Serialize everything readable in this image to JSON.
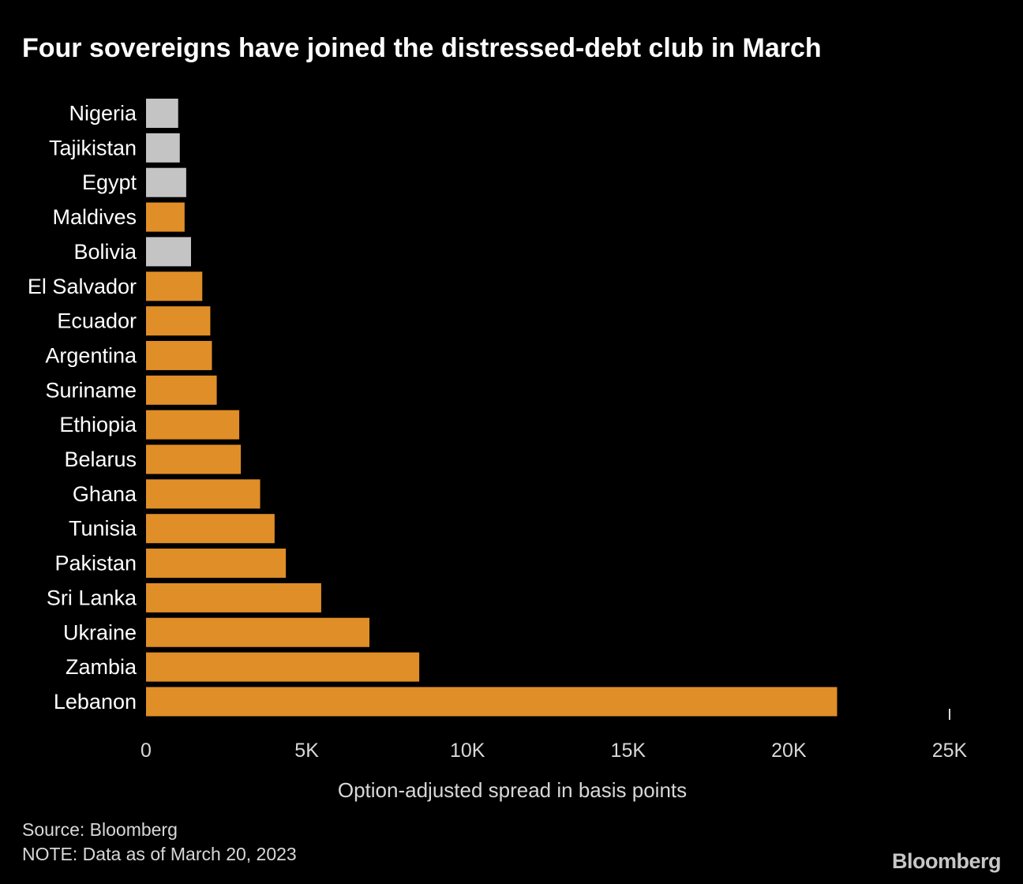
{
  "title": "Four sovereigns have joined the distressed-debt club in March",
  "source": "Source: Bloomberg",
  "note": "NOTE: Data as of March 20, 2023",
  "logo": "Bloomberg",
  "colors": {
    "background": "#000000",
    "highlight": "#e08e27",
    "other": "#c4c4c4",
    "text": "#ffffff",
    "axis_text": "#d8d8d8"
  },
  "chart_data": {
    "type": "bar",
    "orientation": "horizontal",
    "xlabel": "Option-adjusted spread in basis points",
    "ylabel": "",
    "xlim": [
      0,
      25000
    ],
    "xticks": [
      0,
      5000,
      10000,
      15000,
      20000,
      25000
    ],
    "xtick_labels": [
      "0",
      "5K",
      "10K",
      "15K",
      "20K",
      "25K"
    ],
    "grid": false,
    "categories": [
      "Nigeria",
      "Tajikistan",
      "Egypt",
      "Maldives",
      "Bolivia",
      "El Salvador",
      "Ecuador",
      "Argentina",
      "Suriname",
      "Ethiopia",
      "Belarus",
      "Ghana",
      "Tunisia",
      "Pakistan",
      "Sri Lanka",
      "Ukraine",
      "Zambia",
      "Lebanon"
    ],
    "values": [
      1000,
      1050,
      1250,
      1200,
      1400,
      1750,
      2000,
      2050,
      2200,
      2900,
      2950,
      3550,
      4000,
      4350,
      5450,
      6950,
      8500,
      21500
    ],
    "highlight": [
      false,
      false,
      false,
      true,
      false,
      true,
      true,
      true,
      true,
      true,
      true,
      true,
      true,
      true,
      true,
      true,
      true,
      true
    ]
  }
}
